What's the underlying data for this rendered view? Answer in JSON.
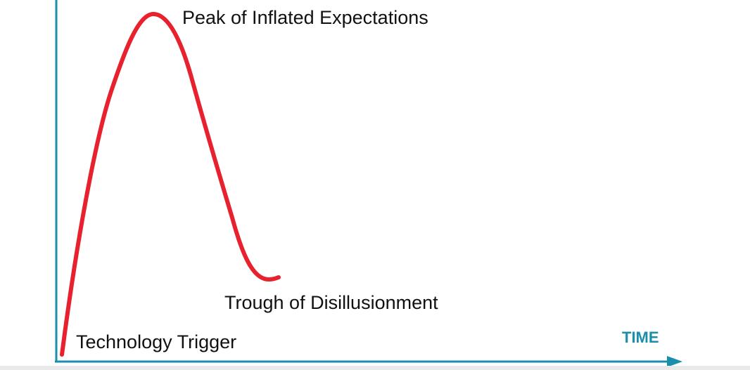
{
  "diagram": {
    "curve_color": "#e8212f",
    "axis_color": "#1a8fab",
    "text_color": "#111111",
    "labels": {
      "peak": "Peak of Inflated Expectations",
      "trough": "Trough of Disillusionment",
      "trigger": "Technology Trigger",
      "x_axis": "TIME"
    }
  }
}
